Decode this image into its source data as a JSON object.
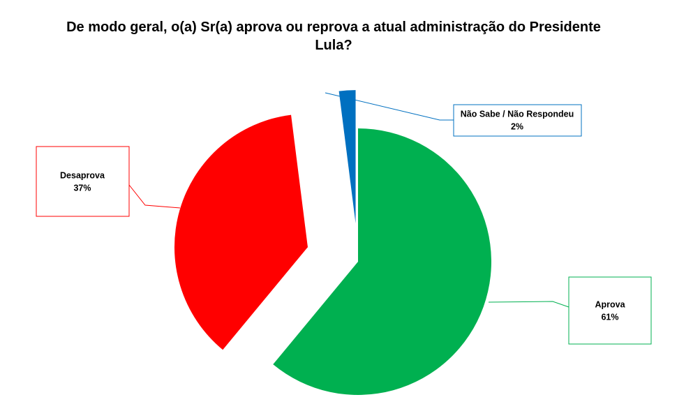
{
  "chart_data": {
    "type": "pie",
    "title": "De modo geral, o(a) Sr(a) aprova ou reprova a atual administração do Presidente Lula?",
    "categories": [
      "Aprova",
      "Desaprova",
      "Não Sabe / Não Respondeu"
    ],
    "values": [
      61,
      37,
      2
    ],
    "value_labels": [
      "61%",
      "37%",
      "2%"
    ],
    "colors": [
      "#00b050",
      "#ff0000",
      "#0070c0"
    ]
  }
}
